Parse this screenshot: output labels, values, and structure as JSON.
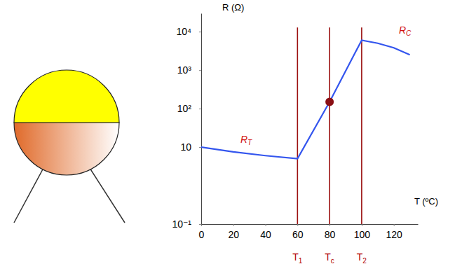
{
  "chart_data": {
    "type": "line",
    "x_label": "T (ºC)",
    "y_label": "R (Ω)",
    "x": [
      0,
      20,
      40,
      60,
      80,
      100,
      110,
      120,
      130
    ],
    "values": [
      10,
      7.5,
      6,
      5,
      150,
      6000,
      5000,
      3800,
      2500
    ],
    "color": "#3355ee",
    "log": "y",
    "grid": false,
    "xlim": [
      0,
      135
    ],
    "ylim": [
      0.1,
      30000
    ],
    "xticks": [
      0,
      20,
      40,
      60,
      80,
      100,
      120
    ],
    "yticks": [
      {
        "value": 0.1,
        "label": "10⁻¹"
      },
      10,
      {
        "value": 100,
        "label": "10²"
      },
      {
        "value": 1000,
        "label": "10³"
      },
      {
        "value": 10000,
        "label": "10⁴"
      }
    ],
    "reference_lines": [
      {
        "value": 60,
        "label": "T1"
      },
      {
        "value": 80,
        "label": "Tc"
      },
      {
        "value": 100,
        "label": "T2"
      }
    ],
    "highlight_point": {
      "x": 80,
      "y": 150
    },
    "annotations": [
      {
        "text": "RT",
        "x": 28,
        "y": 13
      },
      {
        "text": "RC",
        "x": 127,
        "y": 9000
      }
    ]
  }
}
